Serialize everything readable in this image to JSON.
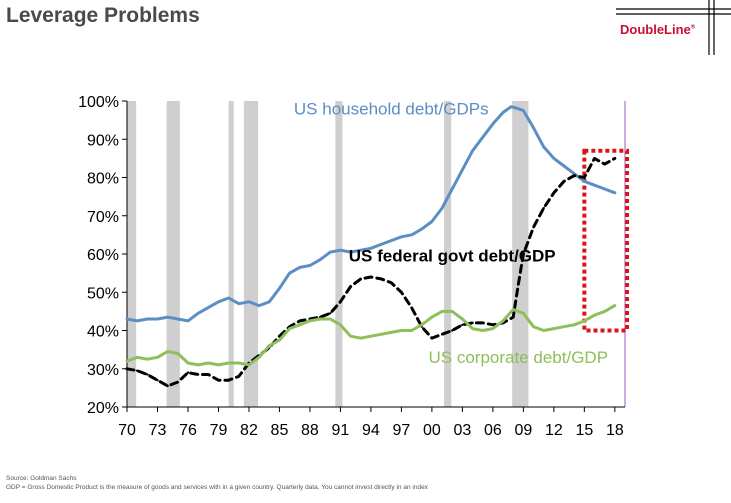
{
  "header": {
    "title": "Leverage Problems",
    "logo_text": "DoubleLine",
    "logo_mark": "®"
  },
  "footer": {
    "source": "Source: Goldman Sachs",
    "note": "GDP = Gross Domestic Product is the measure of goods and services with in a given country. Quarterly data. You cannot invest directly in an index"
  },
  "colors": {
    "household": "#5b8fc4",
    "federal": "#000000",
    "corporate": "#8fbf5a",
    "recession": "#cfcfcf",
    "highlight": "#d9141b",
    "vline": "#a878c8",
    "brand_red": "#c8102e"
  },
  "chart_data": {
    "type": "line",
    "title": "",
    "xlabel": "",
    "ylabel": "",
    "xlim": [
      1970,
      2019
    ],
    "ylim": [
      20,
      100
    ],
    "yticks": [
      "20%",
      "30%",
      "40%",
      "50%",
      "60%",
      "70%",
      "80%",
      "90%",
      "100%"
    ],
    "ytick_values": [
      20,
      30,
      40,
      50,
      60,
      70,
      80,
      90,
      100
    ],
    "xticks": [
      "70",
      "73",
      "76",
      "79",
      "82",
      "85",
      "88",
      "91",
      "94",
      "97",
      "00",
      "03",
      "06",
      "09",
      "12",
      "15",
      "18"
    ],
    "xtick_values": [
      1970,
      1973,
      1976,
      1979,
      1982,
      1985,
      1988,
      1991,
      1994,
      1997,
      2000,
      2003,
      2006,
      2009,
      2012,
      2015,
      2018
    ],
    "grid": false,
    "recessions": [
      [
        1970.0,
        1970.9
      ],
      [
        1973.9,
        1975.2
      ],
      [
        1980.0,
        1980.5
      ],
      [
        1981.5,
        1982.9
      ],
      [
        1990.5,
        1991.2
      ],
      [
        2001.2,
        2001.9
      ],
      [
        2007.9,
        2009.5
      ]
    ],
    "highlight_box": {
      "x": [
        2015.0,
        2019.2
      ],
      "y": [
        40,
        87
      ]
    },
    "series": [
      {
        "name": "US household debt/GDPs",
        "style": "solid",
        "x": [
          1970,
          1971,
          1972,
          1973,
          1974,
          1975,
          1976,
          1977,
          1978,
          1979,
          1980,
          1981,
          1982,
          1983,
          1984,
          1985,
          1986,
          1987,
          1988,
          1989,
          1990,
          1991,
          1992,
          1993,
          1994,
          1995,
          1996,
          1997,
          1998,
          1999,
          2000,
          2001,
          2002,
          2003,
          2004,
          2005,
          2006,
          2007,
          2007.8,
          2008.5,
          2009,
          2010,
          2011,
          2012,
          2013,
          2014,
          2015,
          2016,
          2017,
          2018
        ],
        "values": [
          43,
          42.5,
          43,
          43,
          43.5,
          43,
          42.5,
          44.5,
          46,
          47.5,
          48.5,
          47,
          47.5,
          46.5,
          47.5,
          51,
          55,
          56.5,
          57,
          58.5,
          60.5,
          61,
          60.5,
          61,
          61.5,
          62.5,
          63.5,
          64.5,
          65,
          66.5,
          68.5,
          72,
          77,
          82,
          87,
          90.5,
          94,
          97,
          98.5,
          98,
          97.5,
          93,
          88,
          85,
          83,
          81,
          79,
          78,
          77,
          76
        ]
      },
      {
        "name": "US federal govt debt/GDP",
        "style": "dashed",
        "x": [
          1970,
          1971,
          1972,
          1973,
          1974,
          1975,
          1976,
          1977,
          1978,
          1979,
          1980,
          1981,
          1982,
          1983,
          1984,
          1985,
          1986,
          1987,
          1988,
          1989,
          1990,
          1991,
          1992,
          1993,
          1994,
          1995,
          1996,
          1997,
          1998,
          1999,
          2000,
          2001,
          2002,
          2003,
          2004,
          2005,
          2006,
          2007,
          2008,
          2008.5,
          2009,
          2010,
          2011,
          2012,
          2013,
          2014,
          2015,
          2016,
          2017,
          2018
        ],
        "values": [
          30,
          29.5,
          28.5,
          27,
          25.5,
          26.5,
          29,
          28.5,
          28.5,
          27,
          27,
          28,
          31.5,
          33.5,
          35.5,
          38.5,
          41,
          42.5,
          43,
          43.5,
          44.5,
          47.5,
          51.5,
          53.5,
          54,
          53.5,
          52.5,
          50,
          46,
          41,
          38,
          39,
          40,
          41.5,
          42,
          42,
          41.5,
          42,
          43.5,
          52,
          60,
          67,
          72,
          76,
          79,
          80.5,
          80,
          85,
          83.5,
          85
        ]
      },
      {
        "name": "US corporate debt/GDP",
        "style": "solid",
        "x": [
          1970,
          1971,
          1972,
          1973,
          1974,
          1975,
          1976,
          1977,
          1978,
          1979,
          1980,
          1981,
          1982,
          1983,
          1984,
          1985,
          1986,
          1987,
          1988,
          1989,
          1990,
          1991,
          1992,
          1993,
          1994,
          1995,
          1996,
          1997,
          1998,
          1999,
          2000,
          2001,
          2002,
          2003,
          2004,
          2005,
          2006,
          2007,
          2008,
          2009,
          2010,
          2011,
          2012,
          2013,
          2014,
          2015,
          2016,
          2017,
          2018
        ],
        "values": [
          32,
          33,
          32.5,
          33,
          34.5,
          34,
          31.5,
          31,
          31.5,
          31,
          31.5,
          31.5,
          31,
          33,
          36,
          37.5,
          40.5,
          41.5,
          42.5,
          43,
          43,
          41.5,
          38.5,
          38,
          38.5,
          39,
          39.5,
          40,
          40,
          41.5,
          43.5,
          45,
          45,
          43,
          40.5,
          40,
          40.5,
          42.5,
          45.5,
          44.5,
          41,
          40,
          40.5,
          41,
          41.5,
          42.5,
          44,
          45,
          46.5
        ]
      }
    ],
    "labels": [
      {
        "text": "US household debt/GDPs",
        "series": 0,
        "x": 1996,
        "y": 96.5
      },
      {
        "text": "US federal govt debt/GDP",
        "series": 1,
        "x": 2002,
        "y": 58
      },
      {
        "text": "US corporate debt/GDP",
        "series": 2,
        "x": 2008.5,
        "y": 31.5
      }
    ]
  }
}
